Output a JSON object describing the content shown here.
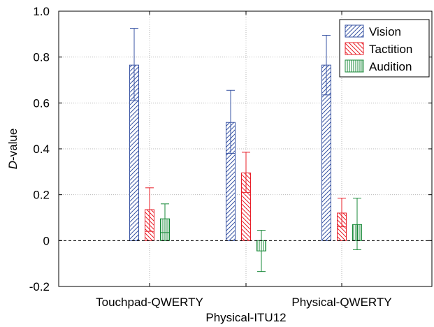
{
  "chart_data": {
    "type": "bar",
    "ylabel_italic": "D",
    "ylabel_rest": "-value",
    "ylim": [
      -0.2,
      1.0
    ],
    "yticks": [
      "-0.2",
      "0",
      "0.2",
      "0.4",
      "0.6",
      "0.8",
      "1.0"
    ],
    "ytick_values": [
      -0.2,
      0,
      0.2,
      0.4,
      0.6,
      0.8,
      1.0
    ],
    "categories": [
      "Touchpad-QWERTY",
      "Physical-ITU12",
      "Physical-QWERTY"
    ],
    "category_label_row": [
      0,
      1,
      0
    ],
    "grid": true,
    "legend_position": "top-right",
    "series": [
      {
        "name": "Vision",
        "color": "#3a55a4",
        "hatch": "diagonal",
        "values": [
          0.765,
          0.515,
          0.765
        ],
        "error_upper": [
          0.925,
          0.655,
          0.895
        ],
        "error_lower": [
          0.61,
          0.38,
          0.635
        ]
      },
      {
        "name": "Tactition",
        "color": "#e8202a",
        "hatch": "anti-diagonal",
        "values": [
          0.135,
          0.295,
          0.12
        ],
        "error_upper": [
          0.23,
          0.385,
          0.185
        ],
        "error_lower": [
          0.04,
          0.21,
          0.06
        ]
      },
      {
        "name": "Audition",
        "color": "#1a8a3a",
        "hatch": "vertical",
        "values": [
          0.095,
          -0.045,
          0.07
        ],
        "error_upper": [
          0.16,
          0.045,
          0.185
        ],
        "error_lower": [
          0.035,
          -0.135,
          -0.04
        ]
      }
    ]
  }
}
